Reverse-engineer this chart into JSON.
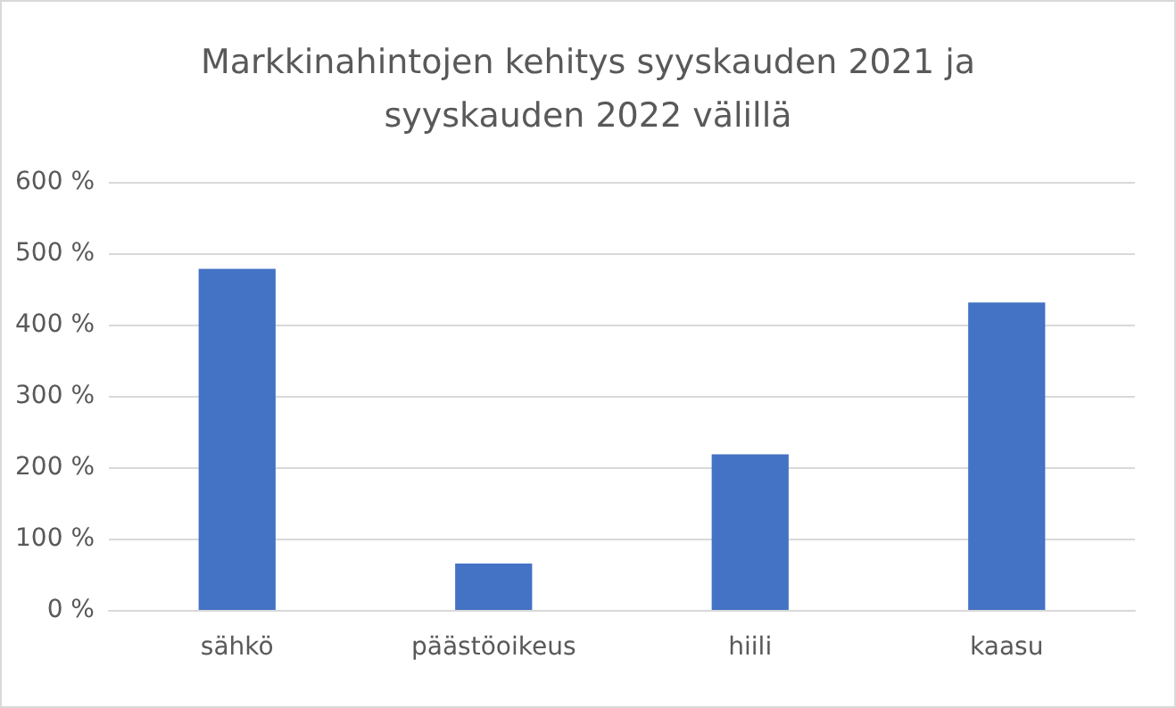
{
  "chart_data": {
    "type": "bar",
    "title": "Markkinahintojen kehitys syyskauden 2021 ja\nsyyskauden 2022 välillä",
    "categories": [
      "sähkö",
      "päästöoikeus",
      "hiili",
      "kaasu"
    ],
    "values": [
      478,
      65,
      218,
      431
    ],
    "color": "#4472c4",
    "ylim": [
      0,
      600
    ],
    "yticks": [
      {
        "value": 0,
        "label": "0 %"
      },
      {
        "value": 100,
        "label": "100 %"
      },
      {
        "value": 200,
        "label": "200 %"
      },
      {
        "value": 300,
        "label": "300 %"
      },
      {
        "value": 400,
        "label": "400 %"
      },
      {
        "value": 500,
        "label": "500 %"
      },
      {
        "value": 600,
        "label": "600 %"
      }
    ],
    "grid": true
  }
}
